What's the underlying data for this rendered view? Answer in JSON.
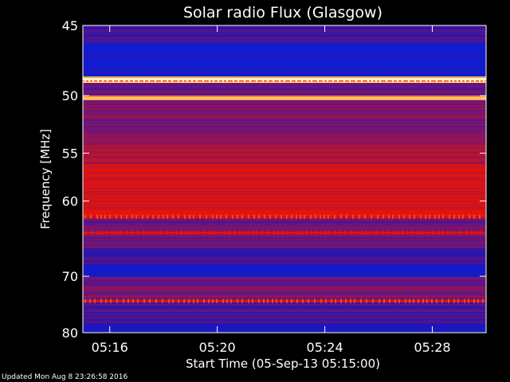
{
  "chart_data": {
    "type": "heatmap",
    "title": "Solar radio Flux (Glasgow)",
    "xlabel": "Start Time (05-Sep-13 05:15:00)",
    "ylabel": "Frequency [MHz]",
    "x_ticks": [
      "05:16",
      "05:20",
      "05:24",
      "05:28"
    ],
    "y_ticks": [
      45,
      50,
      55,
      60,
      70,
      80
    ],
    "ylim": [
      45,
      80
    ],
    "y_scale": "reciprocal",
    "x_range": [
      "05:15:00",
      "05:30:00"
    ],
    "color_scale": "blue-purple-red-yellow",
    "bands": [
      {
        "f_start": 45.0,
        "f_end": 46.2,
        "intensity": 0.25
      },
      {
        "f_start": 46.2,
        "f_end": 48.5,
        "intensity": 0.05
      },
      {
        "f_start": 48.5,
        "f_end": 49.0,
        "intensity": 1.0
      },
      {
        "f_start": 49.0,
        "f_end": 50.0,
        "intensity": 0.35
      },
      {
        "f_start": 50.0,
        "f_end": 50.4,
        "intensity": 0.9
      },
      {
        "f_start": 50.4,
        "f_end": 54.0,
        "intensity": 0.45
      },
      {
        "f_start": 54.0,
        "f_end": 56.0,
        "intensity": 0.55
      },
      {
        "f_start": 56.0,
        "f_end": 60.5,
        "intensity": 0.68
      },
      {
        "f_start": 60.5,
        "f_end": 62.0,
        "intensity": 0.72
      },
      {
        "f_start": 62.0,
        "f_end": 66.0,
        "intensity": 0.4
      },
      {
        "f_start": 66.0,
        "f_end": 68.3,
        "intensity": 0.25
      },
      {
        "f_start": 68.3,
        "f_end": 70.0,
        "intensity": 0.08
      },
      {
        "f_start": 70.0,
        "f_end": 74.0,
        "intensity": 0.42
      },
      {
        "f_start": 74.0,
        "f_end": 78.0,
        "intensity": 0.28
      },
      {
        "f_start": 78.0,
        "f_end": 80.0,
        "intensity": 0.12
      }
    ],
    "spike_bands": [
      {
        "f": 48.8,
        "intensity": 1.0
      },
      {
        "f": 61.8,
        "intensity": 0.85
      },
      {
        "f": 63.8,
        "intensity": 0.8
      },
      {
        "f": 74.0,
        "intensity": 0.85
      }
    ],
    "colors": {
      "low": "#0a1ecf",
      "mid": "#5a1a8c",
      "high": "#d01010",
      "peak": "#ffff80"
    }
  },
  "footer": {
    "updated": "Updated Mon Aug  8 23:26:58 2016"
  }
}
